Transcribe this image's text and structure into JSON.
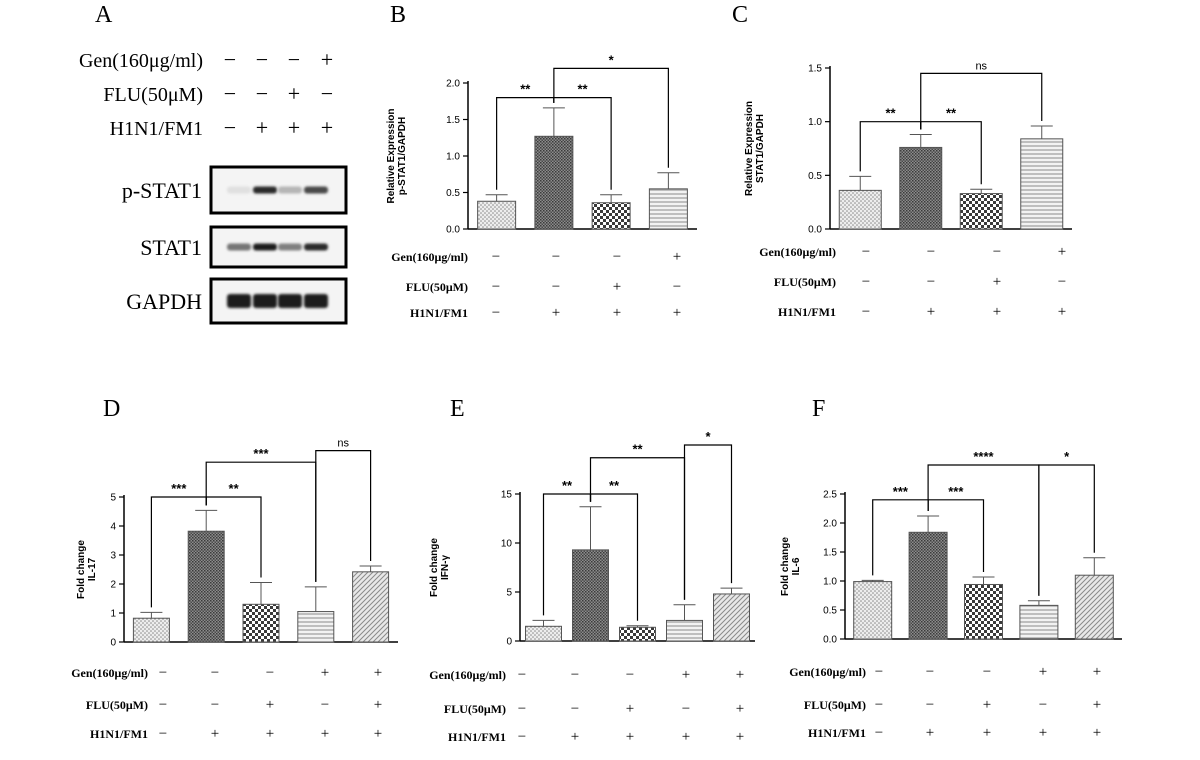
{
  "panel_letters": [
    "A",
    "B",
    "C",
    "D",
    "E",
    "F"
  ],
  "western_blot": {
    "conditions": [
      {
        "label": "Gen(160μg/ml)",
        "values": [
          "−",
          "−",
          "−",
          "+"
        ]
      },
      {
        "label": "FLU(50μM)",
        "values": [
          "−",
          "−",
          "+",
          "−"
        ]
      },
      {
        "label": "H1N1/FM1",
        "values": [
          "−",
          "+",
          "+",
          "+"
        ]
      }
    ],
    "blots": [
      {
        "label": "p-STAT1",
        "band_intensity": [
          0.05,
          0.9,
          0.25,
          0.75
        ]
      },
      {
        "label": "STAT1",
        "band_intensity": [
          0.55,
          0.95,
          0.5,
          0.9
        ]
      },
      {
        "label": "GAPDH",
        "band_intensity": [
          0.95,
          0.95,
          0.95,
          0.95
        ]
      }
    ]
  },
  "chart_data": [
    {
      "type": "bar",
      "panel": "B",
      "ylabel": [
        "Relative Expression",
        "p-STAT1/GAPDH"
      ],
      "ylim": [
        0,
        2.0
      ],
      "yticks": [
        "0.0",
        "0.5",
        "1.0",
        "1.5",
        "2.0"
      ],
      "values": [
        0.38,
        1.27,
        0.36,
        0.55
      ],
      "errors": [
        0.09,
        0.39,
        0.11,
        0.22
      ],
      "patterns": [
        "dots",
        "dense",
        "checker",
        "hlines"
      ],
      "conditions": [
        {
          "label": "Gen(160μg/ml)",
          "values": [
            "−",
            "−",
            "−",
            "+"
          ]
        },
        {
          "label": "FLU(50μM)",
          "values": [
            "−",
            "−",
            "+",
            "−"
          ]
        },
        {
          "label": "H1N1/FM1",
          "values": [
            "−",
            "+",
            "+",
            "+"
          ]
        }
      ],
      "comparisons": [
        {
          "from": 0,
          "to": 1,
          "label": "**",
          "level": 1.8
        },
        {
          "from": 1,
          "to": 2,
          "label": "**",
          "level": 1.8
        },
        {
          "from": 1,
          "to": 3,
          "label": "*",
          "level": 2.2
        }
      ]
    },
    {
      "type": "bar",
      "panel": "C",
      "ylabel": [
        "Relative Expression",
        "STAT1/GAPDH"
      ],
      "ylim": [
        0,
        1.5
      ],
      "yticks": [
        "0.0",
        "0.5",
        "1.0",
        "1.5"
      ],
      "values": [
        0.36,
        0.76,
        0.33,
        0.84
      ],
      "errors": [
        0.13,
        0.12,
        0.04,
        0.12
      ],
      "patterns": [
        "dots",
        "dense",
        "checker",
        "hlines"
      ],
      "conditions": [
        {
          "label": "Gen(160μg/ml)",
          "values": [
            "−",
            "−",
            "−",
            "+"
          ]
        },
        {
          "label": "FLU(50μM)",
          "values": [
            "−",
            "−",
            "+",
            "−"
          ]
        },
        {
          "label": "H1N1/FM1",
          "values": [
            "−",
            "+",
            "+",
            "+"
          ]
        }
      ],
      "comparisons": [
        {
          "from": 0,
          "to": 1,
          "label": "**",
          "level": 1.0
        },
        {
          "from": 1,
          "to": 2,
          "label": "**",
          "level": 1.0
        },
        {
          "from": 1,
          "to": 3,
          "label": "ns",
          "level": 1.45
        }
      ]
    },
    {
      "type": "bar",
      "panel": "D",
      "ylabel": [
        "Fold change",
        "IL-17"
      ],
      "ylim": [
        0,
        5
      ],
      "yticks": [
        "0",
        "1",
        "2",
        "3",
        "4",
        "5"
      ],
      "values": [
        0.82,
        3.82,
        1.3,
        1.05,
        2.42
      ],
      "errors": [
        0.2,
        0.72,
        0.75,
        0.85,
        0.2
      ],
      "patterns": [
        "dots",
        "dense",
        "checker",
        "hlines",
        "diag"
      ],
      "conditions": [
        {
          "label": "Gen(160μg/ml)",
          "values": [
            "−",
            "−",
            "−",
            "+",
            "+"
          ]
        },
        {
          "label": "FLU(50μM)",
          "values": [
            "−",
            "−",
            "+",
            "−",
            "+"
          ]
        },
        {
          "label": "H1N1/FM1",
          "values": [
            "−",
            "+",
            "+",
            "+",
            "+"
          ]
        }
      ],
      "comparisons": [
        {
          "from": 0,
          "to": 1,
          "label": "***",
          "level": 5.0
        },
        {
          "from": 1,
          "to": 2,
          "label": "**",
          "level": 5.0
        },
        {
          "from": 1,
          "to": 3,
          "label": "***",
          "level": 6.2
        },
        {
          "from": 3,
          "to": 4,
          "label": "ns",
          "level": 6.6
        }
      ]
    },
    {
      "type": "bar",
      "panel": "E",
      "ylabel": [
        "Fold change",
        "IFN-γ"
      ],
      "ylim": [
        0,
        15
      ],
      "yticks": [
        "0",
        "5",
        "10",
        "15"
      ],
      "values": [
        1.5,
        9.3,
        1.4,
        2.1,
        4.8
      ],
      "errors": [
        0.6,
        4.4,
        0.15,
        1.6,
        0.6
      ],
      "patterns": [
        "dots",
        "dense",
        "checker",
        "hlines",
        "diag"
      ],
      "conditions": [
        {
          "label": "Gen(160μg/ml)",
          "values": [
            "−",
            "−",
            "−",
            "+",
            "+"
          ]
        },
        {
          "label": "FLU(50μM)",
          "values": [
            "−",
            "−",
            "+",
            "−",
            "+"
          ]
        },
        {
          "label": "H1N1/FM1",
          "values": [
            "−",
            "+",
            "+",
            "+",
            "+"
          ]
        }
      ],
      "comparisons": [
        {
          "from": 0,
          "to": 1,
          "label": "**",
          "level": 15.0
        },
        {
          "from": 1,
          "to": 2,
          "label": "**",
          "level": 15.0
        },
        {
          "from": 1,
          "to": 3,
          "label": "**",
          "level": 18.7
        },
        {
          "from": 3,
          "to": 4,
          "label": "*",
          "level": 20.0
        }
      ]
    },
    {
      "type": "bar",
      "panel": "F",
      "ylabel": [
        "Fold change",
        "IL-6"
      ],
      "ylim": [
        0,
        2.5
      ],
      "yticks": [
        "0.0",
        "0.5",
        "1.0",
        "1.5",
        "2.0",
        "2.5"
      ],
      "values": [
        0.99,
        1.84,
        0.94,
        0.58,
        1.1
      ],
      "errors": [
        0.02,
        0.28,
        0.13,
        0.08,
        0.3
      ],
      "patterns": [
        "dots",
        "dense",
        "checker",
        "hlines",
        "diag"
      ],
      "conditions": [
        {
          "label": "Gen(160μg/ml)",
          "values": [
            "−",
            "−",
            "−",
            "+",
            "+"
          ]
        },
        {
          "label": "FLU(50μM)",
          "values": [
            "−",
            "−",
            "+",
            "−",
            "+"
          ]
        },
        {
          "label": "H1N1/FM1",
          "values": [
            "−",
            "+",
            "+",
            "+",
            "+"
          ]
        }
      ],
      "comparisons": [
        {
          "from": 0,
          "to": 1,
          "label": "***",
          "level": 2.4
        },
        {
          "from": 1,
          "to": 2,
          "label": "***",
          "level": 2.4
        },
        {
          "from": 1,
          "to": 3,
          "label": "****",
          "level": 3.0
        },
        {
          "from": 3,
          "to": 4,
          "label": "*",
          "level": 3.0
        }
      ]
    }
  ]
}
